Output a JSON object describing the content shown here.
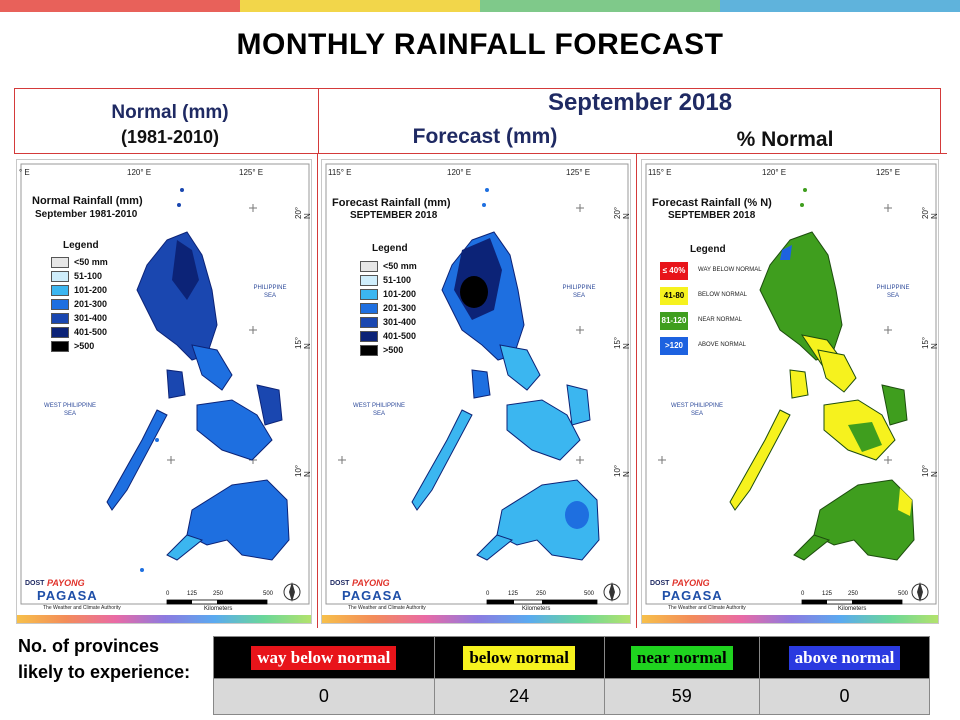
{
  "title": "MONTHLY RAINFALL FORECAST",
  "stripes": [
    "#e8615a",
    "#f2d64a",
    "#7fc98a",
    "#5fb3dc"
  ],
  "headers": {
    "normal_line1": "Normal (mm)",
    "normal_line2": "(1981-2010)",
    "month": "September 2018",
    "forecast": "Forecast (mm)",
    "percent": "% Normal"
  },
  "panels": {
    "normal": {
      "corner_tl": "° E",
      "lon1": "120° E",
      "lon2": "125° E",
      "title": "Normal Rainfall (mm)",
      "subtitle": "September 1981-2010",
      "legend_title": "Legend",
      "legend": [
        {
          "label": "<50 mm",
          "color": "#e6e6e6"
        },
        {
          "label": "51-100",
          "color": "#cfeefc"
        },
        {
          "label": "101-200",
          "color": "#3bb6f0"
        },
        {
          "label": "201-300",
          "color": "#1e6fe0"
        },
        {
          "label": "301-400",
          "color": "#1a47b0"
        },
        {
          "label": "401-500",
          "color": "#0c2377"
        },
        {
          "label": ">500",
          "color": "#000000"
        }
      ],
      "sea_east": "PHILIPPINE\nSEA",
      "sea_west": "WEST PHILIPPINE\nSEA",
      "lat20": "20° N",
      "lat15": "15° N",
      "lat10": "10° N"
    },
    "forecast": {
      "corner_tl": "115° E",
      "lon1": "120° E",
      "lon2": "125° E",
      "title": "Forecast Rainfall (mm)",
      "subtitle": "SEPTEMBER 2018",
      "legend_title": "Legend",
      "legend": [
        {
          "label": "<50 mm",
          "color": "#e6e6e6"
        },
        {
          "label": "51-100",
          "color": "#cfeefc"
        },
        {
          "label": "101-200",
          "color": "#3bb6f0"
        },
        {
          "label": "201-300",
          "color": "#1e6fe0"
        },
        {
          "label": "301-400",
          "color": "#1a47b0"
        },
        {
          "label": "401-500",
          "color": "#0c2377"
        },
        {
          "label": ">500",
          "color": "#000000"
        }
      ],
      "sea_east": "PHILIPPINE\nSEA",
      "sea_west": "WEST PHILIPPINE\nSEA",
      "lat20": "20° N",
      "lat15": "15° N",
      "lat10": "10° N"
    },
    "percent": {
      "corner_tl": "115° E",
      "lon1": "120° E",
      "lon2": "125° E",
      "title": "Forecast Rainfall (% N)",
      "subtitle": "SEPTEMBER 2018",
      "legend_title": "Legend",
      "legend": [
        {
          "box": "≤ 40%",
          "label": "WAY BELOW NORMAL",
          "color": "#e8141a",
          "text_color": "#ffffff"
        },
        {
          "box": "41-80",
          "label": "BELOW NORMAL",
          "color": "#f6f21e",
          "text_color": "#000000"
        },
        {
          "box": "81-120",
          "label": "NEAR NORMAL",
          "color": "#3f9e1e",
          "text_color": "#ffffff"
        },
        {
          "box": ">120",
          "label": "ABOVE NORMAL",
          "color": "#1d62e0",
          "text_color": "#ffffff"
        }
      ],
      "sea_east": "PHILIPPINE\nSEA",
      "sea_west": "WEST PHILIPPINE\nSEA",
      "lat20": "20° N",
      "lat15": "15° N",
      "lat10": "10° N"
    }
  },
  "logo": {
    "dost": "DOST",
    "payong": "PAYONG",
    "pagasa": "PAGASA",
    "tagline": "The Weather and Climate Authority"
  },
  "scale": {
    "s0": "0",
    "s125": "125",
    "s250": "250",
    "s500": "500",
    "unit": "Kilometers"
  },
  "provinces": {
    "label": "No. of provinces likely to experience:",
    "categories": [
      {
        "label": "way below normal",
        "bg": "#e8141a",
        "fg": "#ffffff",
        "count": "0"
      },
      {
        "label": "below normal",
        "bg": "#f6f21e",
        "fg": "#000000",
        "count": "24"
      },
      {
        "label": "near normal",
        "bg": "#1fd31f",
        "fg": "#000000",
        "count": "59"
      },
      {
        "label": "above normal",
        "bg": "#2a3ae0",
        "fg": "#ffffff",
        "count": "0"
      }
    ]
  }
}
